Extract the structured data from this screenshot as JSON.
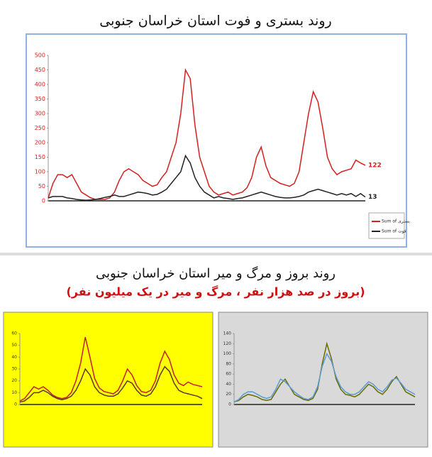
{
  "heading": "روند بروز و مرگ و میر استان خراسان جنوبی",
  "subheading": "(بروز در صد هزار نفر ، مرگ و میر در یک میلیون نفر)",
  "chart_data": [
    {
      "type": "line",
      "title": "روند بستری و فوت استان خراسان جنوبی",
      "ylim": [
        0,
        500
      ],
      "yticks": [
        0,
        50,
        100,
        150,
        200,
        250,
        300,
        350,
        400,
        450,
        500
      ],
      "grid": false,
      "series": [
        {
          "name": "Sum of بستری",
          "color": "#d42020",
          "values": [
            10,
            60,
            90,
            90,
            80,
            90,
            60,
            30,
            20,
            10,
            5,
            5,
            5,
            10,
            30,
            70,
            100,
            110,
            100,
            90,
            70,
            60,
            50,
            55,
            80,
            100,
            150,
            200,
            300,
            450,
            420,
            260,
            150,
            100,
            50,
            30,
            20,
            25,
            30,
            20,
            25,
            30,
            45,
            80,
            150,
            185,
            120,
            80,
            70,
            60,
            55,
            50,
            60,
            100,
            200,
            300,
            375,
            340,
            250,
            150,
            110,
            90,
            100,
            105,
            110,
            140,
            130,
            122
          ]
        },
        {
          "name": "Sum of فوت",
          "color": "#222222",
          "values": [
            10,
            15,
            15,
            15,
            10,
            8,
            5,
            3,
            2,
            3,
            5,
            8,
            12,
            15,
            20,
            15,
            15,
            20,
            25,
            30,
            28,
            25,
            20,
            22,
            30,
            40,
            60,
            80,
            100,
            155,
            130,
            80,
            50,
            30,
            20,
            10,
            15,
            10,
            8,
            5,
            8,
            10,
            15,
            20,
            25,
            30,
            25,
            20,
            15,
            12,
            10,
            10,
            12,
            15,
            20,
            30,
            35,
            40,
            35,
            30,
            25,
            20,
            25,
            20,
            25,
            15,
            25,
            13
          ]
        }
      ]
    },
    {
      "type": "line",
      "ylim": [
        0,
        60
      ],
      "yticks": [
        0,
        10,
        20,
        30,
        40,
        50,
        60
      ],
      "background": "#ffff00",
      "series": [
        {
          "color": "#c0202a",
          "values": [
            3,
            5,
            10,
            15,
            13,
            15,
            12,
            8,
            6,
            5,
            6,
            10,
            20,
            35,
            57,
            40,
            22,
            14,
            11,
            10,
            9,
            12,
            20,
            30,
            25,
            16,
            11,
            10,
            12,
            20,
            35,
            45,
            38,
            25,
            18,
            16,
            19,
            17,
            16,
            15
          ]
        },
        {
          "color": "#5a3a20",
          "values": [
            2,
            3,
            6,
            10,
            10,
            12,
            10,
            7,
            5,
            4,
            5,
            7,
            12,
            20,
            30,
            25,
            15,
            10,
            8,
            7,
            7,
            9,
            14,
            20,
            18,
            12,
            8,
            7,
            9,
            15,
            25,
            32,
            28,
            18,
            12,
            10,
            9,
            8,
            7,
            5
          ]
        }
      ]
    },
    {
      "type": "line",
      "ylim": [
        0,
        140
      ],
      "yticks": [
        0,
        20,
        40,
        60,
        80,
        100,
        120,
        140
      ],
      "background": "#d9d9d9",
      "series": [
        {
          "color": "#6b6b00",
          "values": [
            5,
            8,
            15,
            20,
            18,
            15,
            10,
            8,
            10,
            25,
            40,
            50,
            35,
            20,
            15,
            10,
            8,
            12,
            30,
            80,
            120,
            90,
            50,
            30,
            20,
            18,
            15,
            20,
            30,
            40,
            35,
            25,
            20,
            30,
            45,
            55,
            40,
            25,
            20,
            15
          ]
        },
        {
          "color": "#5b9bd5",
          "values": [
            5,
            10,
            20,
            25,
            25,
            20,
            15,
            12,
            15,
            30,
            50,
            45,
            35,
            25,
            18,
            12,
            10,
            15,
            35,
            75,
            100,
            85,
            55,
            35,
            25,
            20,
            20,
            25,
            35,
            45,
            40,
            30,
            25,
            35,
            48,
            52,
            42,
            30,
            25,
            20
          ]
        }
      ]
    }
  ]
}
